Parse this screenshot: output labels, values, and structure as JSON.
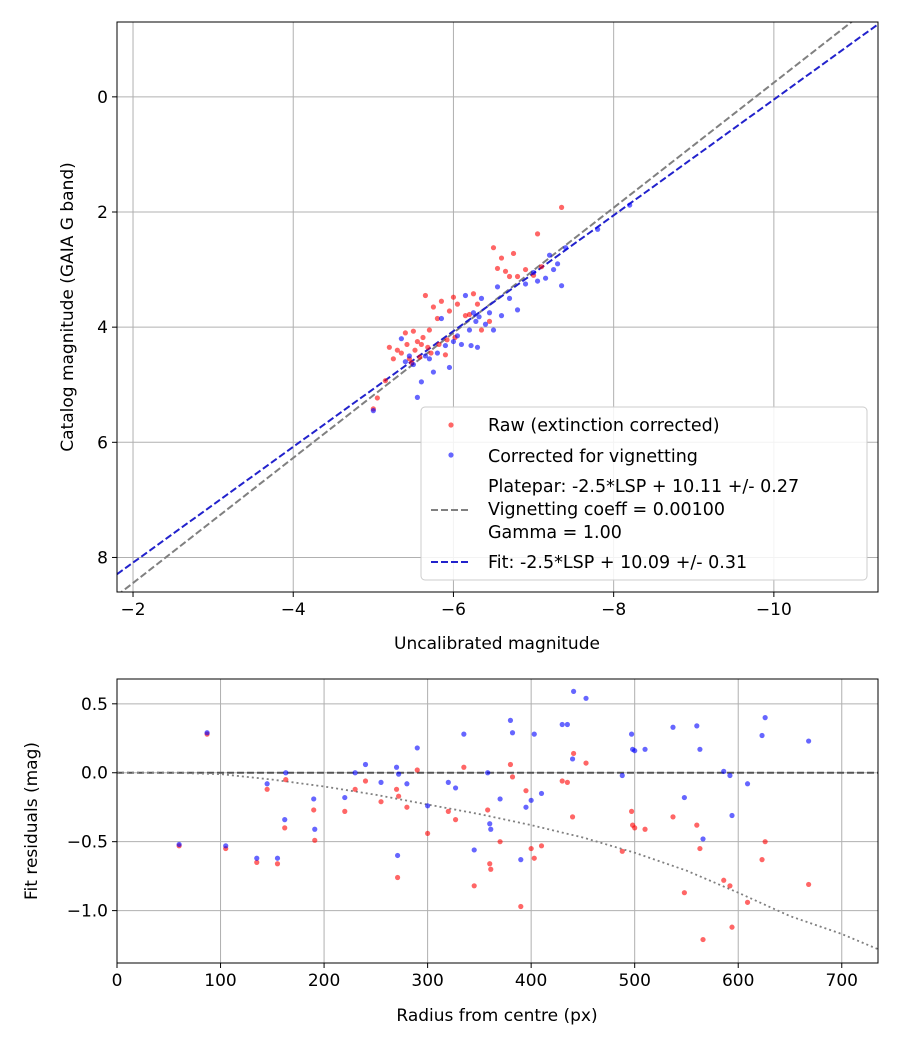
{
  "chart_data": [
    {
      "type": "scatter",
      "title": "",
      "xlabel": "Uncalibrated magnitude",
      "ylabel": "Catalog magnitude (GAIA G band)",
      "xlim": [
        -1.8,
        -11.3
      ],
      "ylim": [
        8.6,
        -1.3
      ],
      "x_axis_inverted": true,
      "y_axis_inverted": true,
      "xticks": [
        -2,
        -4,
        -6,
        -8,
        -10
      ],
      "yticks": [
        0,
        2,
        4,
        6,
        8
      ],
      "xtick_labels": [
        "−2",
        "−4",
        "−6",
        "−8",
        "−10"
      ],
      "ytick_labels": [
        "0",
        "2",
        "4",
        "6",
        "8"
      ],
      "grid": true,
      "legend_position": "lower-right",
      "series": [
        {
          "name": "Raw (extinction corrected)",
          "kind": "points",
          "color": "#ff0000",
          "points": [
            [
              -5.0,
              5.42
            ],
            [
              -5.05,
              5.23
            ],
            [
              -5.15,
              4.93
            ],
            [
              -5.2,
              4.35
            ],
            [
              -5.25,
              4.55
            ],
            [
              -5.3,
              4.4
            ],
            [
              -5.35,
              4.45
            ],
            [
              -5.4,
              4.1
            ],
            [
              -5.42,
              4.3
            ],
            [
              -5.45,
              4.55
            ],
            [
              -5.48,
              4.62
            ],
            [
              -5.5,
              4.07
            ],
            [
              -5.52,
              4.4
            ],
            [
              -5.55,
              4.25
            ],
            [
              -5.58,
              4.52
            ],
            [
              -5.6,
              4.3
            ],
            [
              -5.62,
              4.18
            ],
            [
              -5.65,
              3.45
            ],
            [
              -5.68,
              4.35
            ],
            [
              -5.7,
              4.05
            ],
            [
              -5.72,
              4.45
            ],
            [
              -5.75,
              3.65
            ],
            [
              -5.8,
              3.85
            ],
            [
              -5.82,
              4.3
            ],
            [
              -5.85,
              3.55
            ],
            [
              -5.9,
              4.48
            ],
            [
              -5.92,
              4.22
            ],
            [
              -5.95,
              3.72
            ],
            [
              -6.0,
              3.48
            ],
            [
              -6.02,
              4.18
            ],
            [
              -6.05,
              3.6
            ],
            [
              -6.15,
              3.8
            ],
            [
              -6.2,
              3.78
            ],
            [
              -6.25,
              3.42
            ],
            [
              -6.3,
              3.6
            ],
            [
              -6.35,
              4.05
            ],
            [
              -6.45,
              3.9
            ],
            [
              -6.5,
              2.62
            ],
            [
              -6.55,
              2.98
            ],
            [
              -6.6,
              2.8
            ],
            [
              -6.65,
              3.03
            ],
            [
              -6.7,
              3.12
            ],
            [
              -6.75,
              2.72
            ],
            [
              -6.8,
              3.12
            ],
            [
              -6.9,
              3.0
            ],
            [
              -7.0,
              3.1
            ],
            [
              -7.05,
              2.38
            ],
            [
              -7.1,
              2.95
            ],
            [
              -7.35,
              1.92
            ]
          ]
        },
        {
          "name": "Corrected for vignetting",
          "kind": "points",
          "color": "#0000ff",
          "points": [
            [
              -5.0,
              5.45
            ],
            [
              -5.35,
              4.2
            ],
            [
              -5.4,
              4.6
            ],
            [
              -5.45,
              4.5
            ],
            [
              -5.5,
              4.65
            ],
            [
              -5.55,
              5.22
            ],
            [
              -5.6,
              4.95
            ],
            [
              -5.65,
              4.5
            ],
            [
              -5.7,
              4.55
            ],
            [
              -5.75,
              4.78
            ],
            [
              -5.8,
              4.45
            ],
            [
              -5.85,
              3.85
            ],
            [
              -5.9,
              4.32
            ],
            [
              -5.95,
              4.7
            ],
            [
              -6.0,
              4.25
            ],
            [
              -6.05,
              4.15
            ],
            [
              -6.1,
              4.3
            ],
            [
              -6.15,
              3.45
            ],
            [
              -6.2,
              4.05
            ],
            [
              -6.22,
              4.32
            ],
            [
              -6.25,
              3.75
            ],
            [
              -6.28,
              3.9
            ],
            [
              -6.3,
              4.35
            ],
            [
              -6.32,
              3.82
            ],
            [
              -6.35,
              3.5
            ],
            [
              -6.4,
              3.95
            ],
            [
              -6.45,
              3.75
            ],
            [
              -6.5,
              4.05
            ],
            [
              -6.55,
              3.3
            ],
            [
              -6.6,
              3.8
            ],
            [
              -6.7,
              3.5
            ],
            [
              -6.8,
              3.7
            ],
            [
              -6.9,
              3.25
            ],
            [
              -7.0,
              3.05
            ],
            [
              -7.05,
              3.2
            ],
            [
              -7.15,
              3.15
            ],
            [
              -7.2,
              2.75
            ],
            [
              -7.25,
              3.0
            ],
            [
              -7.3,
              2.9
            ],
            [
              -7.35,
              3.28
            ],
            [
              -7.4,
              2.62
            ],
            [
              -7.8,
              2.3
            ],
            [
              -8.2,
              1.88
            ]
          ]
        },
        {
          "name": "Platepar: -2.5*LSP + 10.11 +/- 0.27\nVignetting coeff = 0.00100\nGamma = 1.00",
          "kind": "dashed_line",
          "color": "#808080",
          "x": [
            -1.8,
            -11.3
          ],
          "y": [
            8.66,
            -1.66
          ]
        },
        {
          "name": "Fit: -2.5*LSP + 10.09 +/- 0.31",
          "kind": "dashed_line",
          "color": "#2222cc",
          "x": [
            -1.8,
            -11.3
          ],
          "y": [
            8.29,
            -1.26
          ]
        }
      ],
      "legend": {
        "entries": [
          {
            "label": "Raw (extinction corrected)",
            "marker": "dot",
            "color": "#ff0000"
          },
          {
            "label": "Corrected for vignetting",
            "marker": "dot",
            "color": "#0000ff"
          },
          {
            "label_lines": [
              "Platepar: -2.5*LSP + 10.11 +/- 0.27",
              "Vignetting coeff = 0.00100",
              "Gamma = 1.00"
            ],
            "marker": "dash",
            "color": "#808080"
          },
          {
            "label": "Fit: -2.5*LSP + 10.09 +/- 0.31",
            "marker": "dash",
            "color": "#2222cc"
          }
        ]
      }
    },
    {
      "type": "scatter",
      "title": "",
      "xlabel": "Radius from centre (px)",
      "ylabel": "Fit residuals (mag)",
      "xlim": [
        0,
        735
      ],
      "ylim": [
        -1.38,
        0.68
      ],
      "xticks": [
        0,
        100,
        200,
        300,
        400,
        500,
        600,
        700
      ],
      "yticks": [
        0.5,
        0.0,
        -0.5,
        -1.0
      ],
      "xtick_labels": [
        "0",
        "100",
        "200",
        "300",
        "400",
        "500",
        "600",
        "700"
      ],
      "ytick_labels": [
        "0.5",
        "0.0",
        "−0.5",
        "−1.0"
      ],
      "grid": true,
      "series": [
        {
          "name": "",
          "kind": "points",
          "color": "#ff0000",
          "points": [
            [
              60,
              -0.53
            ],
            [
              87,
              0.28
            ],
            [
              105,
              -0.55
            ],
            [
              135,
              -0.65
            ],
            [
              145,
              -0.12
            ],
            [
              155,
              -0.66
            ],
            [
              162,
              -0.4
            ],
            [
              163,
              -0.05
            ],
            [
              190,
              -0.27
            ],
            [
              191,
              -0.49
            ],
            [
              220,
              -0.28
            ],
            [
              230,
              -0.12
            ],
            [
              240,
              -0.06
            ],
            [
              255,
              -0.21
            ],
            [
              270,
              -0.12
            ],
            [
              271,
              -0.76
            ],
            [
              272,
              -0.17
            ],
            [
              280,
              -0.25
            ],
            [
              290,
              0.02
            ],
            [
              300,
              -0.44
            ],
            [
              320,
              -0.28
            ],
            [
              327,
              -0.34
            ],
            [
              335,
              0.04
            ],
            [
              345,
              -0.82
            ],
            [
              358,
              -0.27
            ],
            [
              360,
              -0.66
            ],
            [
              361,
              -0.7
            ],
            [
              370,
              -0.5
            ],
            [
              380,
              0.06
            ],
            [
              382,
              -0.03
            ],
            [
              390,
              -0.97
            ],
            [
              395,
              -0.13
            ],
            [
              400,
              -0.55
            ],
            [
              403,
              -0.62
            ],
            [
              410,
              -0.53
            ],
            [
              430,
              -0.06
            ],
            [
              435,
              -0.07
            ],
            [
              440,
              -0.32
            ],
            [
              441,
              0.14
            ],
            [
              453,
              0.07
            ],
            [
              488,
              -0.57
            ],
            [
              497,
              -0.28
            ],
            [
              498,
              -0.38
            ],
            [
              500,
              -0.4
            ],
            [
              510,
              -0.41
            ],
            [
              537,
              -0.32
            ],
            [
              548,
              -0.87
            ],
            [
              560,
              -0.38
            ],
            [
              563,
              -0.55
            ],
            [
              566,
              -1.21
            ],
            [
              586,
              -0.78
            ],
            [
              592,
              -0.82
            ],
            [
              594,
              -1.12
            ],
            [
              609,
              -0.94
            ],
            [
              623,
              -0.63
            ],
            [
              626,
              -0.5
            ],
            [
              668,
              -0.81
            ]
          ]
        },
        {
          "name": "",
          "kind": "points",
          "color": "#0000ff",
          "points": [
            [
              60,
              -0.52
            ],
            [
              87,
              0.29
            ],
            [
              105,
              -0.53
            ],
            [
              135,
              -0.62
            ],
            [
              145,
              -0.08
            ],
            [
              155,
              -0.62
            ],
            [
              162,
              -0.34
            ],
            [
              163,
              0.0
            ],
            [
              190,
              -0.19
            ],
            [
              191,
              -0.41
            ],
            [
              220,
              -0.18
            ],
            [
              230,
              0.0
            ],
            [
              240,
              0.06
            ],
            [
              255,
              -0.07
            ],
            [
              270,
              0.04
            ],
            [
              271,
              -0.6
            ],
            [
              272,
              -0.01
            ],
            [
              280,
              -0.08
            ],
            [
              290,
              0.18
            ],
            [
              300,
              -0.24
            ],
            [
              320,
              -0.07
            ],
            [
              327,
              -0.11
            ],
            [
              335,
              0.28
            ],
            [
              345,
              -0.56
            ],
            [
              358,
              0.0
            ],
            [
              360,
              -0.37
            ],
            [
              361,
              -0.41
            ],
            [
              370,
              -0.19
            ],
            [
              380,
              0.38
            ],
            [
              382,
              0.29
            ],
            [
              390,
              -0.63
            ],
            [
              395,
              -0.25
            ],
            [
              400,
              -0.2
            ],
            [
              403,
              0.28
            ],
            [
              410,
              -0.15
            ],
            [
              430,
              0.35
            ],
            [
              435,
              0.35
            ],
            [
              440,
              0.1
            ],
            [
              441,
              0.59
            ],
            [
              453,
              0.54
            ],
            [
              488,
              -0.02
            ],
            [
              497,
              0.28
            ],
            [
              498,
              0.17
            ],
            [
              500,
              0.16
            ],
            [
              510,
              0.17
            ],
            [
              537,
              0.33
            ],
            [
              548,
              -0.18
            ],
            [
              560,
              0.34
            ],
            [
              563,
              0.17
            ],
            [
              566,
              -0.48
            ],
            [
              586,
              0.01
            ],
            [
              592,
              -0.02
            ],
            [
              594,
              -0.31
            ],
            [
              609,
              -0.08
            ],
            [
              623,
              0.27
            ],
            [
              626,
              0.4
            ],
            [
              668,
              0.23
            ]
          ]
        },
        {
          "name": "",
          "kind": "dashed_line",
          "color": "#555555",
          "x": [
            0,
            735
          ],
          "y": [
            0,
            0
          ]
        },
        {
          "name": "",
          "kind": "dotted_curve",
          "color": "#808080",
          "x": [
            0,
            50,
            100,
            150,
            200,
            250,
            300,
            350,
            400,
            450,
            500,
            550,
            600,
            650,
            700,
            735
          ],
          "y": [
            0.0,
            0.0,
            -0.01,
            -0.05,
            -0.1,
            -0.16,
            -0.23,
            -0.3,
            -0.38,
            -0.47,
            -0.58,
            -0.71,
            -0.87,
            -1.04,
            -1.17,
            -1.28
          ]
        }
      ]
    }
  ]
}
